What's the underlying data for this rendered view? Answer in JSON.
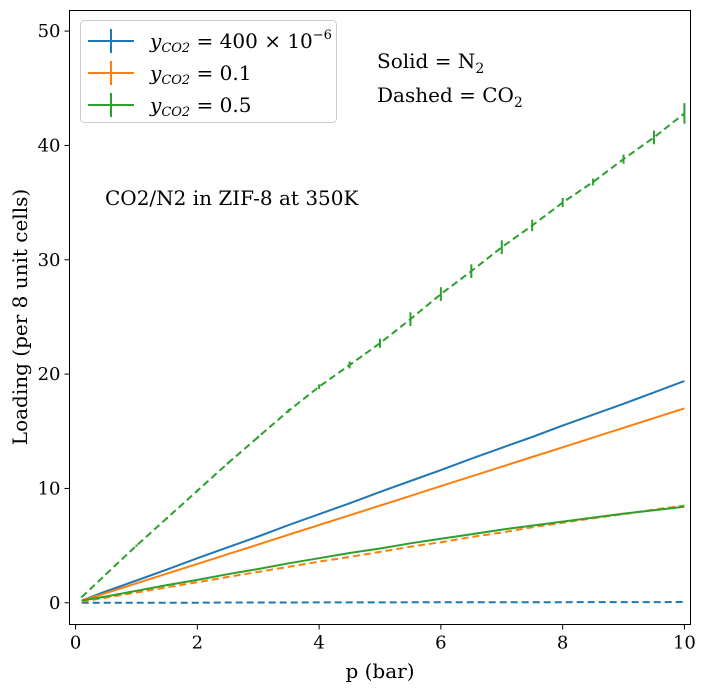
{
  "chart_data": {
    "type": "line",
    "title": "",
    "xlabel": "p (bar)",
    "ylabel": "Loading (per 8 unit cells)",
    "xlim": [
      -0.1,
      10.1
    ],
    "ylim": [
      -1.9,
      51.8
    ],
    "xticks": [
      0,
      2,
      4,
      6,
      8,
      10
    ],
    "yticks": [
      0,
      10,
      20,
      30,
      40,
      50
    ],
    "grid": false,
    "legend_placement": "top-left",
    "annotations": {
      "solid": "Solid = N",
      "solid_sub": "2",
      "dashed": "Dashed = CO",
      "dashed_sub": "2",
      "system": "CO2/N2 in ZIF-8 at 350K"
    },
    "legend": [
      {
        "label_var": "y",
        "label_sub": "CO2",
        "label_rest": " = 400 × 10",
        "label_sup": "−6",
        "color": "#1f77b4"
      },
      {
        "label_var": "y",
        "label_sub": "CO2",
        "label_rest": " = 0.1",
        "label_sup": "",
        "color": "#ff7f0e"
      },
      {
        "label_var": "y",
        "label_sub": "CO2",
        "label_rest": " = 0.5",
        "label_sup": "",
        "color": "#2ca02c"
      }
    ],
    "x": [
      0.1,
      0.5,
      1,
      1.5,
      2,
      2.5,
      3,
      3.5,
      4,
      4.5,
      5,
      5.5,
      6,
      6.5,
      7,
      7.5,
      8,
      8.5,
      9,
      9.5,
      10
    ],
    "series": [
      {
        "group": "y_CO2 = 400e-6",
        "component": "N2",
        "style": "solid",
        "color": "#1f77b4",
        "values": [
          0.2,
          1.0,
          1.95,
          2.9,
          3.9,
          4.85,
          5.8,
          6.8,
          7.75,
          8.7,
          9.7,
          10.65,
          11.6,
          12.6,
          13.55,
          14.5,
          15.5,
          16.45,
          17.4,
          18.4,
          19.4
        ]
      },
      {
        "group": "y_CO2 = 400e-6",
        "component": "CO2",
        "style": "dashed",
        "color": "#1f77b4",
        "values": [
          0.0,
          0.0,
          0.01,
          0.01,
          0.01,
          0.02,
          0.02,
          0.02,
          0.03,
          0.03,
          0.03,
          0.04,
          0.04,
          0.04,
          0.05,
          0.05,
          0.05,
          0.06,
          0.06,
          0.06,
          0.07
        ]
      },
      {
        "group": "y_CO2 = 0.1",
        "component": "N2",
        "style": "solid",
        "color": "#ff7f0e",
        "values": [
          0.2,
          0.85,
          1.7,
          2.55,
          3.4,
          4.25,
          5.1,
          5.95,
          6.8,
          7.65,
          8.5,
          9.35,
          10.2,
          11.05,
          11.9,
          12.75,
          13.6,
          14.45,
          15.3,
          16.15,
          17.0
        ]
      },
      {
        "group": "y_CO2 = 0.1",
        "component": "CO2",
        "style": "dashed",
        "color": "#ff7f0e",
        "values": [
          0.1,
          0.45,
          0.9,
          1.35,
          1.8,
          2.25,
          2.7,
          3.15,
          3.6,
          4.0,
          4.45,
          4.9,
          5.3,
          5.75,
          6.15,
          6.6,
          7.0,
          7.4,
          7.75,
          8.15,
          8.5
        ]
      },
      {
        "group": "y_CO2 = 0.5",
        "component": "N2",
        "style": "solid",
        "color": "#2ca02c",
        "values": [
          0.2,
          0.55,
          1.05,
          1.55,
          2.0,
          2.5,
          2.95,
          3.45,
          3.9,
          4.35,
          4.75,
          5.2,
          5.6,
          6.0,
          6.4,
          6.75,
          7.1,
          7.45,
          7.8,
          8.1,
          8.4
        ]
      },
      {
        "group": "y_CO2 = 0.5",
        "component": "CO2",
        "style": "dashed",
        "color": "#2ca02c",
        "values": [
          0.5,
          2.5,
          5.0,
          7.4,
          9.8,
          12.2,
          14.5,
          16.8,
          18.9,
          20.8,
          22.7,
          24.8,
          27.0,
          29.0,
          31.1,
          33.0,
          35.0,
          36.8,
          38.8,
          40.7,
          42.8
        ],
        "yerr": [
          0.05,
          0.05,
          0.1,
          0.1,
          0.1,
          0.1,
          0.1,
          0.15,
          0.2,
          0.3,
          0.4,
          0.6,
          0.6,
          0.6,
          0.6,
          0.5,
          0.4,
          0.3,
          0.4,
          0.6,
          0.9
        ]
      }
    ]
  }
}
